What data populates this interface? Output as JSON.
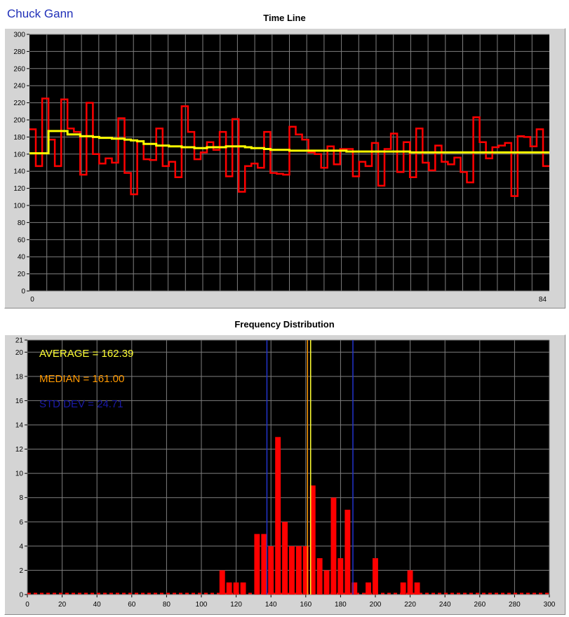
{
  "header": {
    "author": "Chuck Gann"
  },
  "chart_data": [
    {
      "type": "line",
      "title": "Time Line",
      "xlim": [
        0,
        84
      ],
      "ylim": [
        0,
        300
      ],
      "x_ticks": [
        0,
        84
      ],
      "y_ticks": [
        0,
        20,
        40,
        60,
        80,
        100,
        120,
        140,
        160,
        180,
        200,
        220,
        240,
        260,
        280,
        300
      ],
      "grid": true,
      "series": [
        {
          "color": "#ff0000",
          "step": true,
          "values": [
            189,
            146,
            225,
            177,
            146,
            224,
            190,
            186,
            136,
            220,
            160,
            149,
            155,
            150,
            202,
            138,
            113,
            175,
            154,
            153,
            190,
            146,
            151,
            133,
            216,
            186,
            154,
            162,
            174,
            165,
            186,
            134,
            201,
            116,
            146,
            149,
            144,
            186,
            138,
            137,
            136,
            192,
            183,
            177,
            162,
            160,
            144,
            169,
            148,
            166,
            166,
            134,
            151,
            146,
            173,
            123,
            166,
            184,
            139,
            174,
            133,
            190,
            150,
            141,
            170,
            151,
            148,
            156,
            139,
            127,
            203,
            174,
            155,
            168,
            170,
            173,
            111,
            181,
            180,
            169,
            189,
            146
          ]
        },
        {
          "color": "#ffff00",
          "step": true,
          "values": [
            161,
            161,
            161,
            187,
            187,
            187,
            183,
            183,
            181,
            181,
            180,
            179,
            179,
            178,
            178,
            177,
            176,
            175,
            172,
            172,
            170,
            170,
            169,
            169,
            168,
            168,
            167,
            167,
            168,
            168,
            168,
            169,
            169,
            169,
            168,
            167,
            167,
            166,
            165,
            165,
            165,
            164,
            164,
            164,
            164,
            164,
            164,
            164,
            164,
            164,
            163,
            163,
            163,
            163,
            163,
            163,
            163,
            163,
            163,
            163,
            162,
            162,
            162,
            162,
            162,
            162,
            162,
            162,
            162,
            162,
            162,
            162,
            162,
            162,
            162,
            162,
            162,
            162,
            162,
            162,
            162,
            162
          ]
        }
      ]
    },
    {
      "type": "bar",
      "title": "Frequency Distribution",
      "xlim": [
        0,
        300
      ],
      "ylim": [
        0,
        21
      ],
      "x_ticks": [
        0,
        20,
        40,
        60,
        80,
        100,
        120,
        140,
        160,
        180,
        200,
        220,
        240,
        260,
        280,
        300
      ],
      "y_ticks": [
        0,
        2,
        4,
        6,
        8,
        10,
        12,
        14,
        16,
        18,
        20,
        21
      ],
      "grid": true,
      "bar_color": "#ff0000",
      "bins": [
        112,
        116,
        120,
        124,
        132,
        136,
        140,
        144,
        148,
        152,
        156,
        160,
        164,
        168,
        172,
        176,
        180,
        184,
        188,
        196,
        200,
        216,
        220,
        224
      ],
      "counts": [
        2,
        1,
        1,
        1,
        5,
        5,
        4,
        13,
        6,
        4,
        4,
        4,
        9,
        3,
        2,
        8,
        3,
        7,
        1,
        1,
        3,
        1,
        2,
        1
      ],
      "bin_width": 4,
      "annotations": {
        "average": {
          "label": "AVERAGE = 162.39",
          "value": 162.39,
          "color": "#ffff33"
        },
        "median": {
          "label": "MEDIAN = 161.00",
          "value": 161.0,
          "color": "#ff9900"
        },
        "std_dev": {
          "label": "STD DEV = 24.71",
          "value": 24.71,
          "color": "#1a1aa8"
        }
      }
    }
  ]
}
